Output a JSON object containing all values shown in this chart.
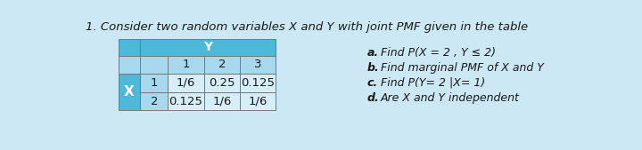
{
  "title": "1. Consider two random variables X and Y with joint PMF given in the table",
  "title_fontsize": 9.5,
  "bg_color": "#cce8f4",
  "table_bg": "#cce8f4",
  "header_color": "#4db8d8",
  "subheader_color": "#a8d8ee",
  "cell_color": "#d6eef8",
  "white_cell": "#ffffff",
  "questions": [
    [
      "a.",
      "Find P(X = 2 , Y ≤ 2)"
    ],
    [
      "b.",
      "Find marginal PMF of X and Y"
    ],
    [
      "c.",
      "Find P(Y= 2 |X= 1)"
    ],
    [
      "d.",
      "Are X and Y independent"
    ]
  ],
  "q_fontsize": 9.0,
  "text_color": "#1a1a1a",
  "data": [
    [
      "1/6",
      "0.25",
      "0.125"
    ],
    [
      "0.125",
      "1/6",
      "1/6"
    ]
  ]
}
